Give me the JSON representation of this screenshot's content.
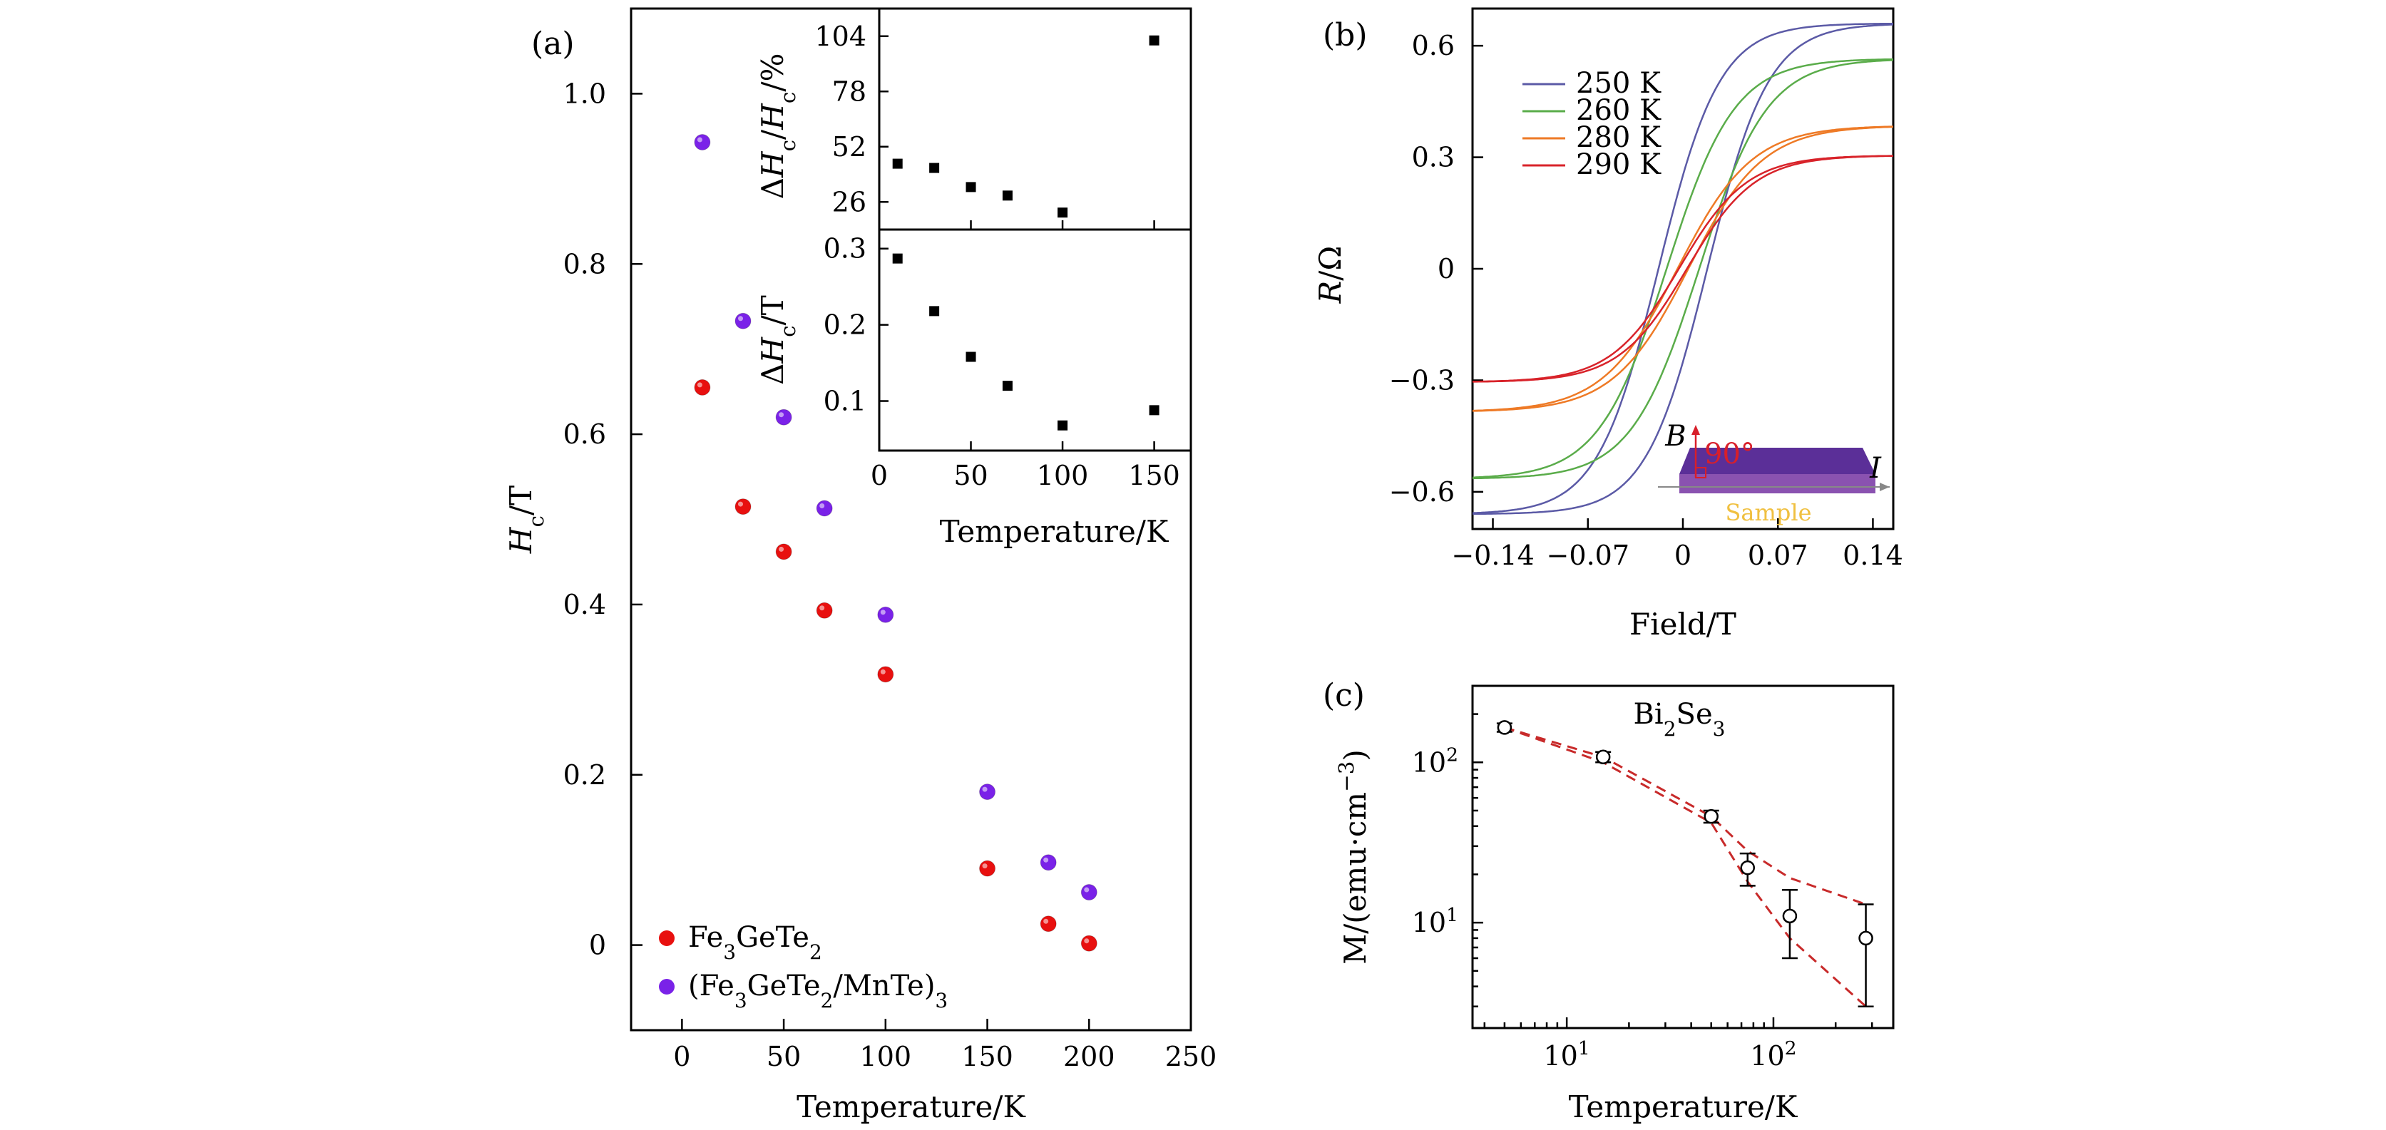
{
  "panel_labels": {
    "a": "(a)",
    "b": "(b)",
    "c": "(c)"
  },
  "chart_data": [
    {
      "id": "a-main",
      "type": "scatter",
      "xlabel": "Temperature/K",
      "ylabel": "H_c/T",
      "xlim": [
        -25,
        250
      ],
      "ylim": [
        -0.1,
        1.1
      ],
      "xticks": [
        0,
        50,
        100,
        150,
        200,
        250
      ],
      "yticks": [
        0,
        0.2,
        0.4,
        0.6,
        0.8,
        1.0
      ],
      "xtick_labels": [
        "0",
        "50",
        "100",
        "150",
        "200",
        "250"
      ],
      "ytick_labels": [
        "0",
        "0.2",
        "0.4",
        "0.6",
        "0.8",
        "1.0"
      ],
      "legend_position": "bottom-left",
      "series": [
        {
          "name": "Fe3GeTe2",
          "label_parts": [
            "Fe",
            "3",
            "GeTe",
            "2",
            "",
            ""
          ],
          "color": "#e8100f",
          "x": [
            10,
            30,
            50,
            70,
            100,
            150,
            180,
            200
          ],
          "y": [
            0.655,
            0.515,
            0.462,
            0.393,
            0.318,
            0.09,
            0.025,
            0.002
          ]
        },
        {
          "name": "(Fe3GeTe2/MnTe)3",
          "label_parts": [
            "(Fe",
            "3",
            "GeTe",
            "2",
            "/MnTe)",
            "3"
          ],
          "color": "#7a22e8",
          "x": [
            10,
            30,
            50,
            70,
            100,
            150,
            180,
            200
          ],
          "y": [
            0.943,
            0.733,
            0.62,
            0.513,
            0.388,
            0.18,
            0.097,
            0.062
          ]
        }
      ]
    },
    {
      "id": "a-inset-top",
      "type": "scatter",
      "ylabel": "ΔH_c/H_c/%",
      "xlim": [
        0,
        170
      ],
      "ylim": [
        13,
        117
      ],
      "yticks": [
        26,
        52,
        78,
        104
      ],
      "ytick_labels": [
        "26",
        "52",
        "78",
        "104"
      ],
      "series": [
        {
          "color": "#000000",
          "x": [
            10,
            30,
            50,
            70,
            100,
            150
          ],
          "y": [
            44,
            42,
            33,
            29,
            21,
            102
          ]
        }
      ]
    },
    {
      "id": "a-inset-bottom",
      "type": "scatter",
      "xlabel": "Temperature/K",
      "ylabel": "ΔH_c/T",
      "xlim": [
        0,
        170
      ],
      "ylim": [
        0.035,
        0.325
      ],
      "xticks": [
        0,
        50,
        100,
        150
      ],
      "yticks": [
        0.1,
        0.2,
        0.3
      ],
      "xtick_labels": [
        "0",
        "50",
        "100",
        "150"
      ],
      "ytick_labels": [
        "0.1",
        "0.2",
        "0.3"
      ],
      "series": [
        {
          "color": "#000000",
          "x": [
            10,
            30,
            50,
            70,
            100,
            150
          ],
          "y": [
            0.287,
            0.218,
            0.158,
            0.12,
            0.068,
            0.088
          ]
        }
      ]
    },
    {
      "id": "b",
      "type": "line",
      "xlabel": "Field/T",
      "ylabel": "R/Ω",
      "xlim": [
        -0.155,
        0.155
      ],
      "ylim": [
        -0.7,
        0.7
      ],
      "xticks": [
        -0.14,
        -0.07,
        0,
        0.07,
        0.14
      ],
      "yticks": [
        -0.6,
        -0.3,
        0,
        0.3,
        0.6
      ],
      "xtick_labels": [
        "−0.14",
        "−0.07",
        "0",
        "0.07",
        "0.14"
      ],
      "ytick_labels": [
        "−0.6",
        "−0.3",
        "0",
        "0.3",
        "0.6"
      ],
      "legend_position": "top-left",
      "series": [
        {
          "name": "250 K",
          "color": "#5b5aa6",
          "saturation": 0.66,
          "field_scale": 0.045,
          "offset": 0.018
        },
        {
          "name": "260 K",
          "color": "#5aac4a",
          "saturation": 0.565,
          "field_scale": 0.05,
          "offset": 0.012
        },
        {
          "name": "280 K",
          "color": "#ee7a26",
          "saturation": 0.385,
          "field_scale": 0.055,
          "offset": 0.004
        },
        {
          "name": "290 K",
          "color": "#d8232a",
          "saturation": 0.305,
          "field_scale": 0.05,
          "offset": 0.003
        }
      ],
      "inset": {
        "field_label": "B",
        "angle_label": "90°",
        "current_label": "I",
        "sample_label": "Sample"
      }
    },
    {
      "id": "c",
      "type": "scatter",
      "title": "Bi2Se3",
      "title_parts": [
        "Bi",
        "2",
        "Se",
        "3"
      ],
      "xlabel": "Temperature/K",
      "ylabel": "M/(emu·cm⁻³)",
      "x_scale": "log",
      "y_scale": "log",
      "xlim": [
        3.5,
        380
      ],
      "ylim": [
        2.2,
        300
      ],
      "xticks": [
        10,
        100
      ],
      "yticks": [
        10,
        100
      ],
      "tick_base": "10",
      "tick_exponents": [
        "1",
        "2"
      ],
      "points": {
        "x": [
          5,
          15,
          50,
          75,
          120,
          280
        ],
        "y": [
          165,
          108,
          46,
          22,
          11,
          8
        ],
        "y_err_low": [
          155,
          100,
          42,
          17,
          6,
          3
        ],
        "y_err_high": [
          175,
          116,
          50,
          27,
          16,
          13
        ]
      },
      "fit_lines": [
        {
          "color": "#c82a2a",
          "style": "dashed",
          "x": [
            5,
            15,
            50,
            75,
            120,
            280
          ],
          "y": [
            165,
            108,
            46,
            28,
            19,
            13
          ]
        },
        {
          "color": "#c82a2a",
          "style": "dashed",
          "x": [
            5,
            15,
            50,
            75,
            120,
            280
          ],
          "y": [
            165,
            100,
            42,
            18,
            8,
            3
          ]
        }
      ]
    }
  ]
}
